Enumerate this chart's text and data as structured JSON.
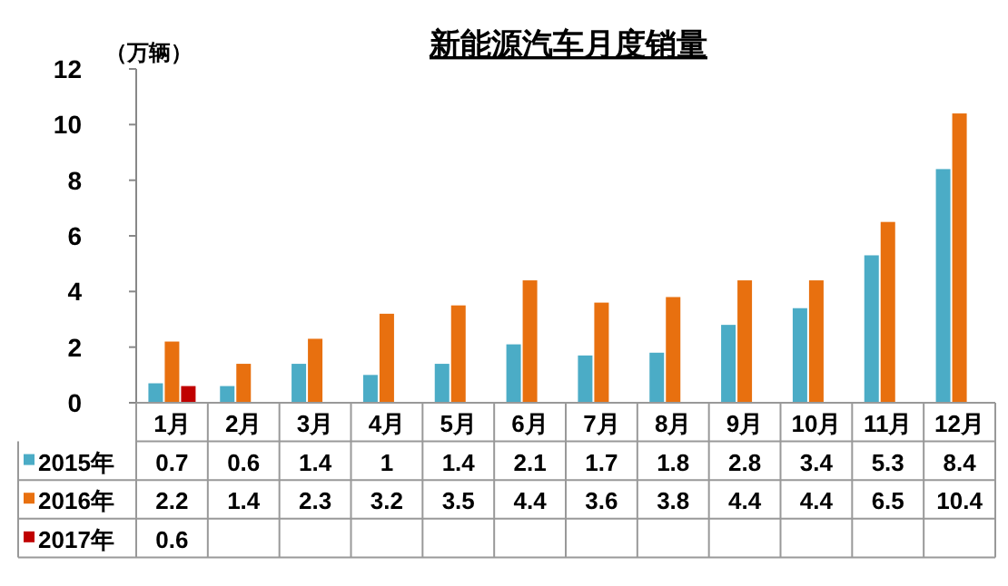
{
  "chart_data": {
    "type": "bar",
    "title": "新能源汽车月度销量",
    "ylabel": "（万辆）",
    "categories": [
      "1月",
      "2月",
      "3月",
      "4月",
      "5月",
      "6月",
      "7月",
      "8月",
      "9月",
      "10月",
      "11月",
      "12月"
    ],
    "series": [
      {
        "name": "2015年",
        "color": "#4bacc6",
        "values": [
          0.7,
          0.6,
          1.4,
          1,
          1.4,
          2.1,
          1.7,
          1.8,
          2.8,
          3.4,
          5.3,
          8.4
        ],
        "value_labels": [
          "0.7",
          "0.6",
          "1.4",
          "1",
          "1.4",
          "2.1",
          "1.7",
          "1.8",
          "2.8",
          "3.4",
          "5.3",
          "8.4"
        ]
      },
      {
        "name": "2016年",
        "color": "#e8700f",
        "values": [
          2.2,
          1.4,
          2.3,
          3.2,
          3.5,
          4.4,
          3.6,
          3.8,
          4.4,
          4.4,
          6.5,
          10.4
        ],
        "value_labels": [
          "2.2",
          "1.4",
          "2.3",
          "3.2",
          "3.5",
          "4.4",
          "3.6",
          "3.8",
          "4.4",
          "4.4",
          "6.5",
          "10.4"
        ]
      },
      {
        "name": "2017年",
        "color": "#c00000",
        "values": [
          0.6,
          null,
          null,
          null,
          null,
          null,
          null,
          null,
          null,
          null,
          null,
          null
        ],
        "value_labels": [
          "0.6",
          null,
          null,
          null,
          null,
          null,
          null,
          null,
          null,
          null,
          null,
          null
        ]
      }
    ],
    "ylim": [
      0,
      12
    ],
    "yticks": [
      0,
      2,
      4,
      6,
      8,
      10,
      12
    ],
    "grid": false,
    "legend": "bottom"
  }
}
